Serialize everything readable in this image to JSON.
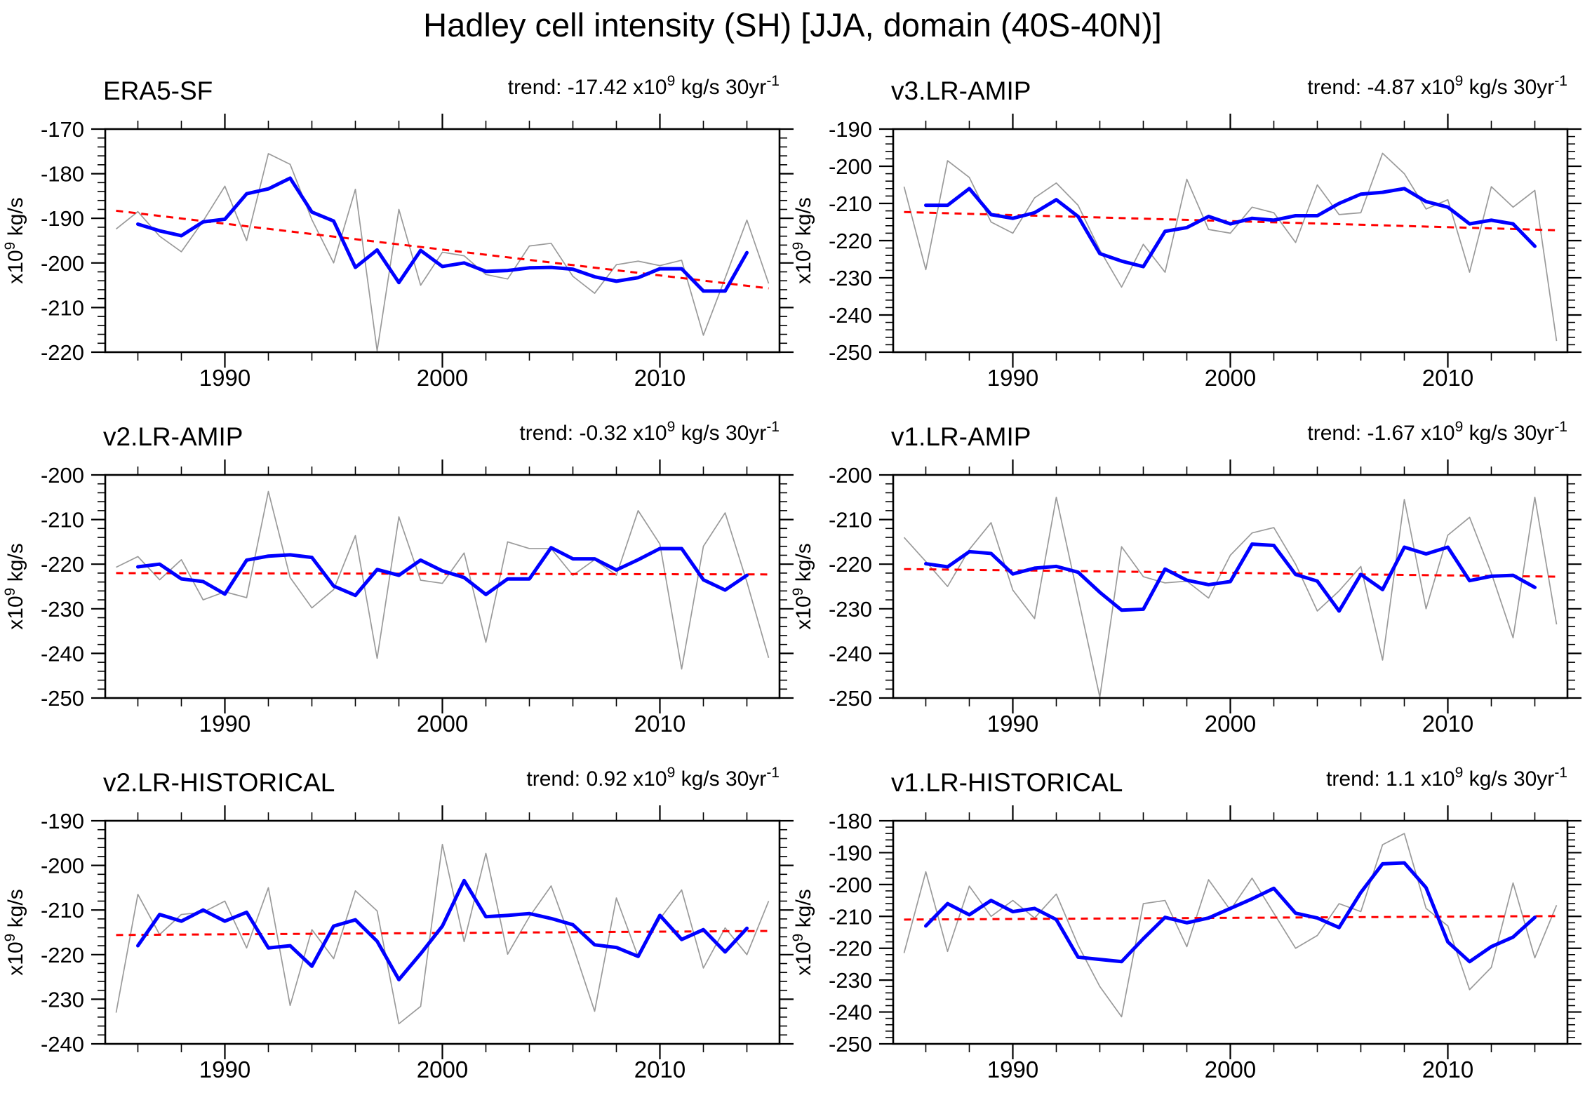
{
  "figure_title": "Hadley cell intensity (SH) [JJA, domain (40S-40N)]",
  "ylabel": {
    "base": "x10",
    "sup": "9",
    "rest": " kg/s"
  },
  "x_axis": {
    "major_ticks": [
      1990,
      2000,
      2010
    ],
    "minor_step_years": 2,
    "range": [
      1984.5,
      2015.5
    ]
  },
  "colors": {
    "annual": "#9a9a9a",
    "smoothed": "#0000ff",
    "trend": "#ff0000",
    "axes": "#000000"
  },
  "chart_data": [
    {
      "type": "line",
      "title": "ERA5-SF",
      "trend_per_30yr": -17.42,
      "trend_text": {
        "base": "trend: -17.42 x10",
        "sup": "9",
        "mid": " kg/s 30yr",
        "sup2": "-1"
      },
      "ylim": [
        -220,
        -170
      ],
      "yticks": [
        -170,
        -180,
        -190,
        -200,
        -210,
        -220
      ],
      "xticks": [
        1990,
        2000,
        2010
      ],
      "xlim": [
        1984.5,
        2015.5
      ],
      "series": [
        {
          "name": "annual",
          "color": "#9a9a9a",
          "x_start": 1985,
          "values": [
            -192.4,
            -188.5,
            -194.0,
            -197.5,
            -190.6,
            -182.8,
            -195.0,
            -175.5,
            -177.9,
            -190.3,
            -200.0,
            -183.5,
            -219.7,
            -188.0,
            -205.0,
            -197.6,
            -198.4,
            -202.6,
            -203.6,
            -196.2,
            -195.6,
            -203.0,
            -206.8,
            -200.4,
            -199.6,
            -200.6,
            -199.4,
            -216.2,
            -203.4,
            -190.4,
            -204.6
          ]
        },
        {
          "name": "smoothed",
          "color": "#0000ff",
          "x_start": 1986,
          "values": [
            -191.3,
            -192.8,
            -193.9,
            -190.8,
            -190.2,
            -184.5,
            -183.4,
            -181.0,
            -188.6,
            -190.6,
            -201.0,
            -197.1,
            -204.4,
            -197.2,
            -200.8,
            -200.0,
            -201.9,
            -201.7,
            -201.1,
            -201.0,
            -201.4,
            -203.1,
            -204.1,
            -203.3,
            -201.3,
            -201.3,
            -206.3,
            -206.3,
            -197.7
          ]
        },
        {
          "name": "trend",
          "color": "#ff0000",
          "style": "dashed",
          "x": [
            1985,
            2015
          ],
          "values": [
            -188.3,
            -205.7
          ]
        }
      ]
    },
    {
      "type": "line",
      "title": "v3.LR-AMIP",
      "trend_per_30yr": -4.87,
      "trend_text": {
        "base": "trend: -4.87 x10",
        "sup": "9",
        "mid": " kg/s 30yr",
        "sup2": "-1"
      },
      "ylim": [
        -250,
        -190
      ],
      "yticks": [
        -190,
        -200,
        -210,
        -220,
        -230,
        -240,
        -250
      ],
      "xticks": [
        1990,
        2000,
        2010
      ],
      "xlim": [
        1984.5,
        2015.5
      ],
      "series": [
        {
          "name": "annual",
          "color": "#9a9a9a",
          "x_start": 1985,
          "values": [
            -205.5,
            -227.8,
            -198.5,
            -203.0,
            -215.0,
            -218.0,
            -208.5,
            -204.5,
            -210.5,
            -222.5,
            -232.5,
            -221.0,
            -228.5,
            -203.5,
            -217.0,
            -218.0,
            -211.0,
            -212.5,
            -220.5,
            -205.0,
            -213.0,
            -212.5,
            -196.5,
            -202.0,
            -211.5,
            -209.0,
            -228.5,
            -205.5,
            -211.0,
            -206.5,
            -247.0
          ]
        },
        {
          "name": "smoothed",
          "color": "#0000ff",
          "x_start": 1986,
          "values": [
            -210.5,
            -210.5,
            -206.0,
            -213.0,
            -214.0,
            -212.5,
            -209.0,
            -213.5,
            -223.5,
            -225.5,
            -227.0,
            -217.5,
            -216.5,
            -213.5,
            -215.5,
            -214.0,
            -214.5,
            -213.3,
            -213.3,
            -210.0,
            -207.5,
            -207.0,
            -206.0,
            -209.5,
            -211.0,
            -215.5,
            -214.5,
            -215.5,
            -221.5
          ]
        },
        {
          "name": "trend",
          "color": "#ff0000",
          "style": "dashed",
          "x": [
            1985,
            2015
          ],
          "values": [
            -212.3,
            -217.2
          ]
        }
      ]
    },
    {
      "type": "line",
      "title": "v2.LR-AMIP",
      "trend_per_30yr": -0.32,
      "trend_text": {
        "base": "trend: -0.32 x10",
        "sup": "9",
        "mid": " kg/s 30yr",
        "sup2": "-1"
      },
      "ylim": [
        -250,
        -200
      ],
      "yticks": [
        -200,
        -210,
        -220,
        -230,
        -240,
        -250
      ],
      "xticks": [
        1990,
        2000,
        2010
      ],
      "xlim": [
        1984.5,
        2015.5
      ],
      "series": [
        {
          "name": "annual",
          "color": "#9a9a9a",
          "x_start": 1985,
          "values": [
            -220.7,
            -218.3,
            -223.5,
            -219.0,
            -228.0,
            -226.2,
            -227.5,
            -203.7,
            -223.0,
            -229.8,
            -225.7,
            -213.6,
            -241.1,
            -209.4,
            -223.6,
            -224.3,
            -217.5,
            -237.5,
            -215.0,
            -216.5,
            -216.5,
            -222.5,
            -219.0,
            -222.5,
            -208.0,
            -215.5,
            -243.5,
            -216.0,
            -208.5,
            -224.0,
            -241.0
          ]
        },
        {
          "name": "smoothed",
          "color": "#0000ff",
          "x_start": 1986,
          "values": [
            -220.6,
            -220.0,
            -223.3,
            -223.9,
            -226.7,
            -219.1,
            -218.2,
            -217.9,
            -218.5,
            -224.9,
            -227.0,
            -221.2,
            -222.5,
            -219.1,
            -221.5,
            -223.0,
            -226.8,
            -223.3,
            -223.3,
            -216.3,
            -218.8,
            -218.8,
            -221.3,
            -219.0,
            -216.5,
            -216.5,
            -223.5,
            -225.8,
            -222.5
          ]
        },
        {
          "name": "trend",
          "color": "#ff0000",
          "style": "dashed",
          "x": [
            1985,
            2015
          ],
          "values": [
            -222.0,
            -222.3
          ]
        }
      ]
    },
    {
      "type": "line",
      "title": "v1.LR-AMIP",
      "trend_per_30yr": -1.67,
      "trend_text": {
        "base": "trend: -1.67 x10",
        "sup": "9",
        "mid": " kg/s 30yr",
        "sup2": "-1"
      },
      "ylim": [
        -250,
        -200
      ],
      "yticks": [
        -200,
        -210,
        -220,
        -230,
        -240,
        -250
      ],
      "xticks": [
        1990,
        2000,
        2010
      ],
      "xlim": [
        1984.5,
        2015.5
      ],
      "series": [
        {
          "name": "annual",
          "color": "#9a9a9a",
          "x_start": 1985,
          "values": [
            -214.0,
            -219.4,
            -225.0,
            -216.7,
            -210.7,
            -225.8,
            -232.2,
            -205.0,
            -227.4,
            -249.8,
            -216.1,
            -222.8,
            -224.2,
            -223.8,
            -227.6,
            -218.0,
            -213.0,
            -211.8,
            -220.0,
            -230.5,
            -226.0,
            -220.5,
            -241.5,
            -205.5,
            -230.0,
            -213.5,
            -209.5,
            -222.0,
            -236.5,
            -205.0,
            -233.5
          ]
        },
        {
          "name": "smoothed",
          "color": "#0000ff",
          "x_start": 1986,
          "values": [
            -219.9,
            -220.6,
            -217.2,
            -217.6,
            -222.2,
            -220.9,
            -220.5,
            -221.8,
            -226.3,
            -230.3,
            -230.1,
            -221.1,
            -223.6,
            -224.6,
            -223.9,
            -215.5,
            -215.8,
            -222.3,
            -223.8,
            -230.5,
            -222.3,
            -225.7,
            -216.2,
            -217.7,
            -216.2,
            -223.7,
            -222.7,
            -222.5,
            -225.2
          ]
        },
        {
          "name": "trend",
          "color": "#ff0000",
          "style": "dashed",
          "x": [
            1985,
            2015
          ],
          "values": [
            -221.1,
            -222.8
          ]
        }
      ]
    },
    {
      "type": "line",
      "title": "v2.LR-HISTORICAL",
      "trend_per_30yr": 0.92,
      "trend_text": {
        "base": "trend: 0.92 x10",
        "sup": "9",
        "mid": " kg/s 30yr",
        "sup2": "-1"
      },
      "ylim": [
        -240,
        -190
      ],
      "yticks": [
        -190,
        -200,
        -210,
        -220,
        -230,
        -240
      ],
      "xticks": [
        1990,
        2000,
        2010
      ],
      "xlim": [
        1984.5,
        2015.5
      ],
      "series": [
        {
          "name": "annual",
          "color": "#9a9a9a",
          "x_start": 1985,
          "values": [
            -233.0,
            -206.5,
            -215.5,
            -211.0,
            -210.5,
            -208.0,
            -218.5,
            -205.0,
            -231.4,
            -214.4,
            -220.9,
            -205.7,
            -210.2,
            -235.5,
            -231.6,
            -195.3,
            -217.1,
            -197.3,
            -219.9,
            -211.5,
            -204.6,
            -218.0,
            -232.7,
            -207.3,
            -220.5,
            -212.0,
            -205.5,
            -223.0,
            -214.0,
            -220.0,
            -208.0
          ]
        },
        {
          "name": "smoothed",
          "color": "#0000ff",
          "x_start": 1986,
          "values": [
            -218.0,
            -211.0,
            -212.5,
            -210.0,
            -212.5,
            -210.5,
            -218.5,
            -218.0,
            -222.6,
            -213.6,
            -212.2,
            -217.0,
            -225.6,
            -219.8,
            -213.6,
            -203.4,
            -211.5,
            -211.2,
            -210.8,
            -211.9,
            -213.3,
            -217.8,
            -218.4,
            -220.4,
            -211.2,
            -216.6,
            -214.4,
            -219.4,
            -214.1
          ]
        },
        {
          "name": "trend",
          "color": "#ff0000",
          "style": "dashed",
          "x": [
            1985,
            2015
          ],
          "values": [
            -215.6,
            -214.7
          ]
        }
      ]
    },
    {
      "type": "line",
      "title": "v1.LR-HISTORICAL",
      "trend_per_30yr": 1.1,
      "trend_text": {
        "base": "trend: 1.1 x10",
        "sup": "9",
        "mid": " kg/s 30yr",
        "sup2": "-1"
      },
      "ylim": [
        -250,
        -180
      ],
      "yticks": [
        -180,
        -190,
        -200,
        -210,
        -220,
        -230,
        -240,
        -250
      ],
      "xticks": [
        1990,
        2000,
        2010
      ],
      "xlim": [
        1984.5,
        2015.5
      ],
      "series": [
        {
          "name": "annual",
          "color": "#9a9a9a",
          "x_start": 1985,
          "values": [
            -221.5,
            -196.0,
            -221.0,
            -200.5,
            -210.0,
            -205.0,
            -210.5,
            -203.0,
            -219.0,
            -232.0,
            -241.5,
            -206.0,
            -205.0,
            -219.5,
            -198.5,
            -208.0,
            -198.0,
            -209.0,
            -220.0,
            -216.0,
            -206.0,
            -208.5,
            -187.5,
            -184.0,
            -207.5,
            -213.0,
            -233.0,
            -226.0,
            -199.5,
            -223.0,
            -206.5
          ]
        },
        {
          "name": "smoothed",
          "color": "#0000ff",
          "x_start": 1986,
          "values": [
            -213.0,
            -206.0,
            -209.5,
            -205.0,
            -208.5,
            -207.5,
            -211.0,
            -222.8,
            -223.5,
            -224.2,
            -217.0,
            -210.3,
            -212.0,
            -210.5,
            -207.5,
            -204.5,
            -201.2,
            -209.0,
            -210.5,
            -213.5,
            -202.5,
            -193.5,
            -193.2,
            -201.0,
            -218.0,
            -224.2,
            -219.5,
            -216.5,
            -210.3
          ]
        },
        {
          "name": "trend",
          "color": "#ff0000",
          "style": "dashed",
          "x": [
            1985,
            2015
          ],
          "values": [
            -211.0,
            -209.9
          ]
        }
      ]
    }
  ]
}
